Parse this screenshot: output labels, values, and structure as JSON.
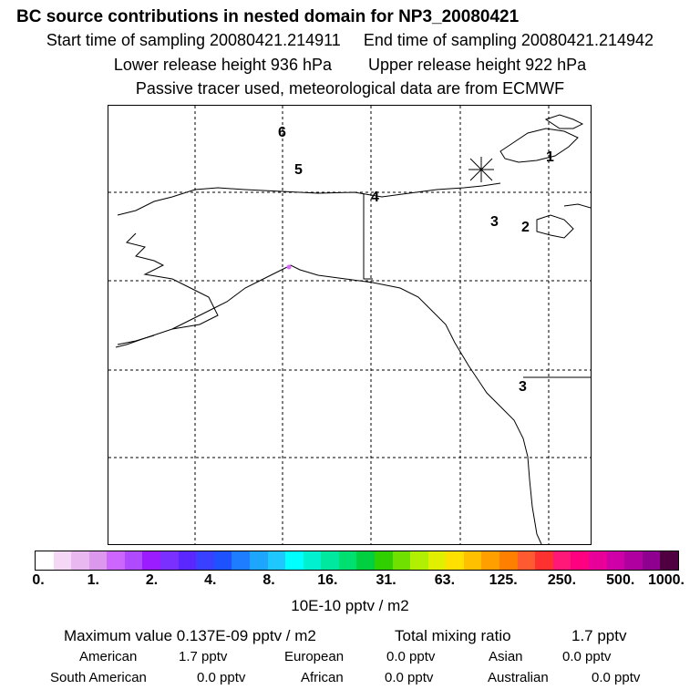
{
  "title": "BC  source contributions in nested domain for NP3_20080421",
  "header": {
    "start": "Start time of sampling 20080421.214911",
    "end": "End time of sampling 20080421.214942",
    "lower": "Lower release height  936 hPa",
    "upper": "Upper release height  922 hPa",
    "tracer": "Passive tracer used, meteorological data are from ECMWF"
  },
  "map": {
    "markers": [
      "6",
      "5",
      "4",
      "3",
      "2",
      "1",
      "3"
    ]
  },
  "colorbar": {
    "ticks": [
      "0.",
      "1.",
      "2.",
      "4.",
      "8.",
      "16.",
      "31.",
      "63.",
      "125.",
      "250.",
      "500.",
      "1000."
    ],
    "unit": "10E-10 pptv / m2",
    "colors": [
      "#ffffff",
      "#f5d8f5",
      "#eab8f0",
      "#dc98ec",
      "#cc66ff",
      "#b04aff",
      "#9a1cff",
      "#7a30ff",
      "#5a28ff",
      "#3a40ff",
      "#1e52ff",
      "#1e7cff",
      "#1ea6ff",
      "#1ec8ff",
      "#00ffff",
      "#00f0d0",
      "#00e8a0",
      "#00e070",
      "#00d040",
      "#30d000",
      "#70e000",
      "#b0f000",
      "#e0f000",
      "#ffe000",
      "#ffc000",
      "#ffa000",
      "#ff8000",
      "#ff5a30",
      "#ff3030",
      "#ff1878",
      "#ff0080",
      "#e80098",
      "#d000a8",
      "#b000a0",
      "#900090",
      "#500040"
    ]
  },
  "summary": {
    "max": "Maximum value  0.137E-09 pptv / m2",
    "total_label": "Total mixing ratio",
    "total_value": "1.7 pptv",
    "rows": [
      [
        [
          "American",
          "1.7 pptv"
        ],
        [
          "European",
          "0.0 pptv"
        ],
        [
          "Asian",
          "0.0 pptv"
        ]
      ],
      [
        [
          "South American",
          "0.0 pptv"
        ],
        [
          "African",
          "0.0 pptv"
        ],
        [
          "Australian",
          "0.0 pptv"
        ]
      ]
    ]
  }
}
